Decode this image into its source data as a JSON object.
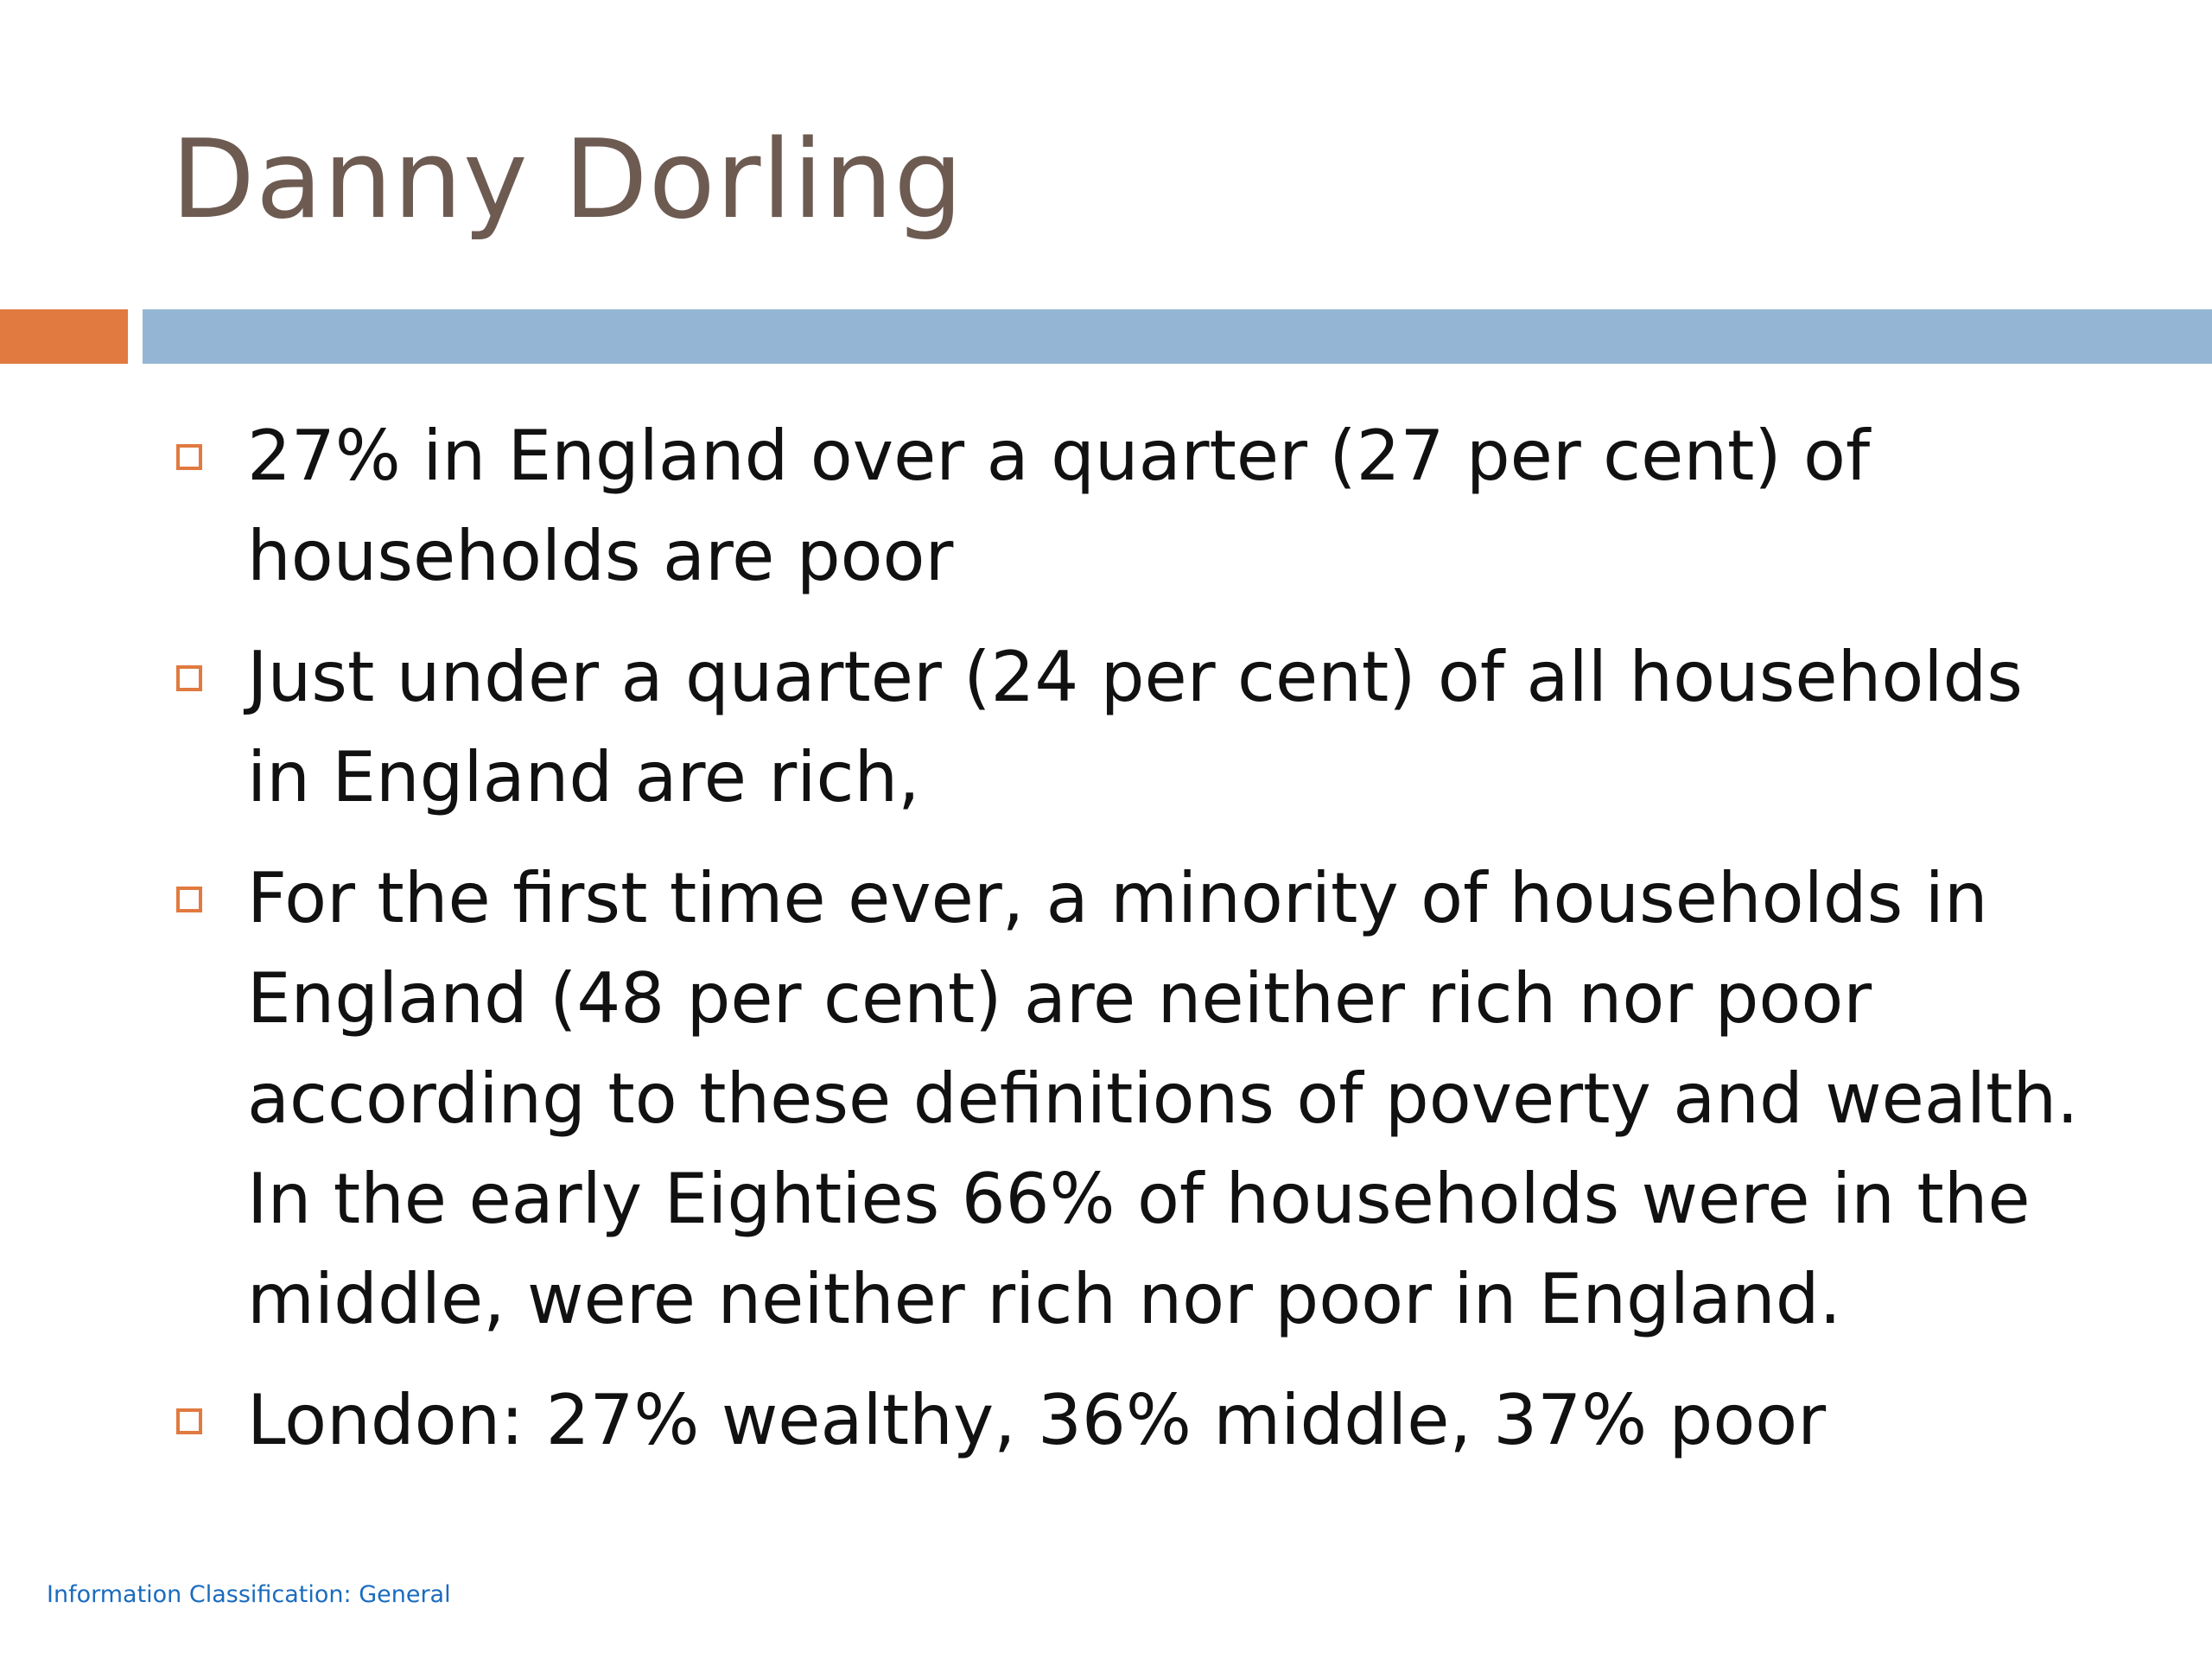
{
  "slide": {
    "title": "Danny Dorling",
    "colors": {
      "title": "#6d5b52",
      "accent_orange": "#e07a40",
      "accent_blue": "#94b6d4",
      "bullet_marker": "#e07a40",
      "body_text": "#111111",
      "footer_text": "#1a6bbf"
    },
    "bullet_icon": "hollow-square-bullet-icon",
    "bullets": [
      {
        "text": "27%  in England over a quarter (27 per cent) of households are poor"
      },
      {
        "text": "Just under a quarter (24 per cent) of all households in England are rich,"
      },
      {
        "text": "For the first time ever, a minority of households in England (48 per cent) are neither rich nor poor according to these definitions of poverty and wealth. In the early Eighties 66% of households were in the middle, were neither rich nor poor in England."
      },
      {
        "text": "London: 27% wealthy, 36% middle, 37% poor"
      }
    ],
    "footer": "Information Classification: General"
  }
}
